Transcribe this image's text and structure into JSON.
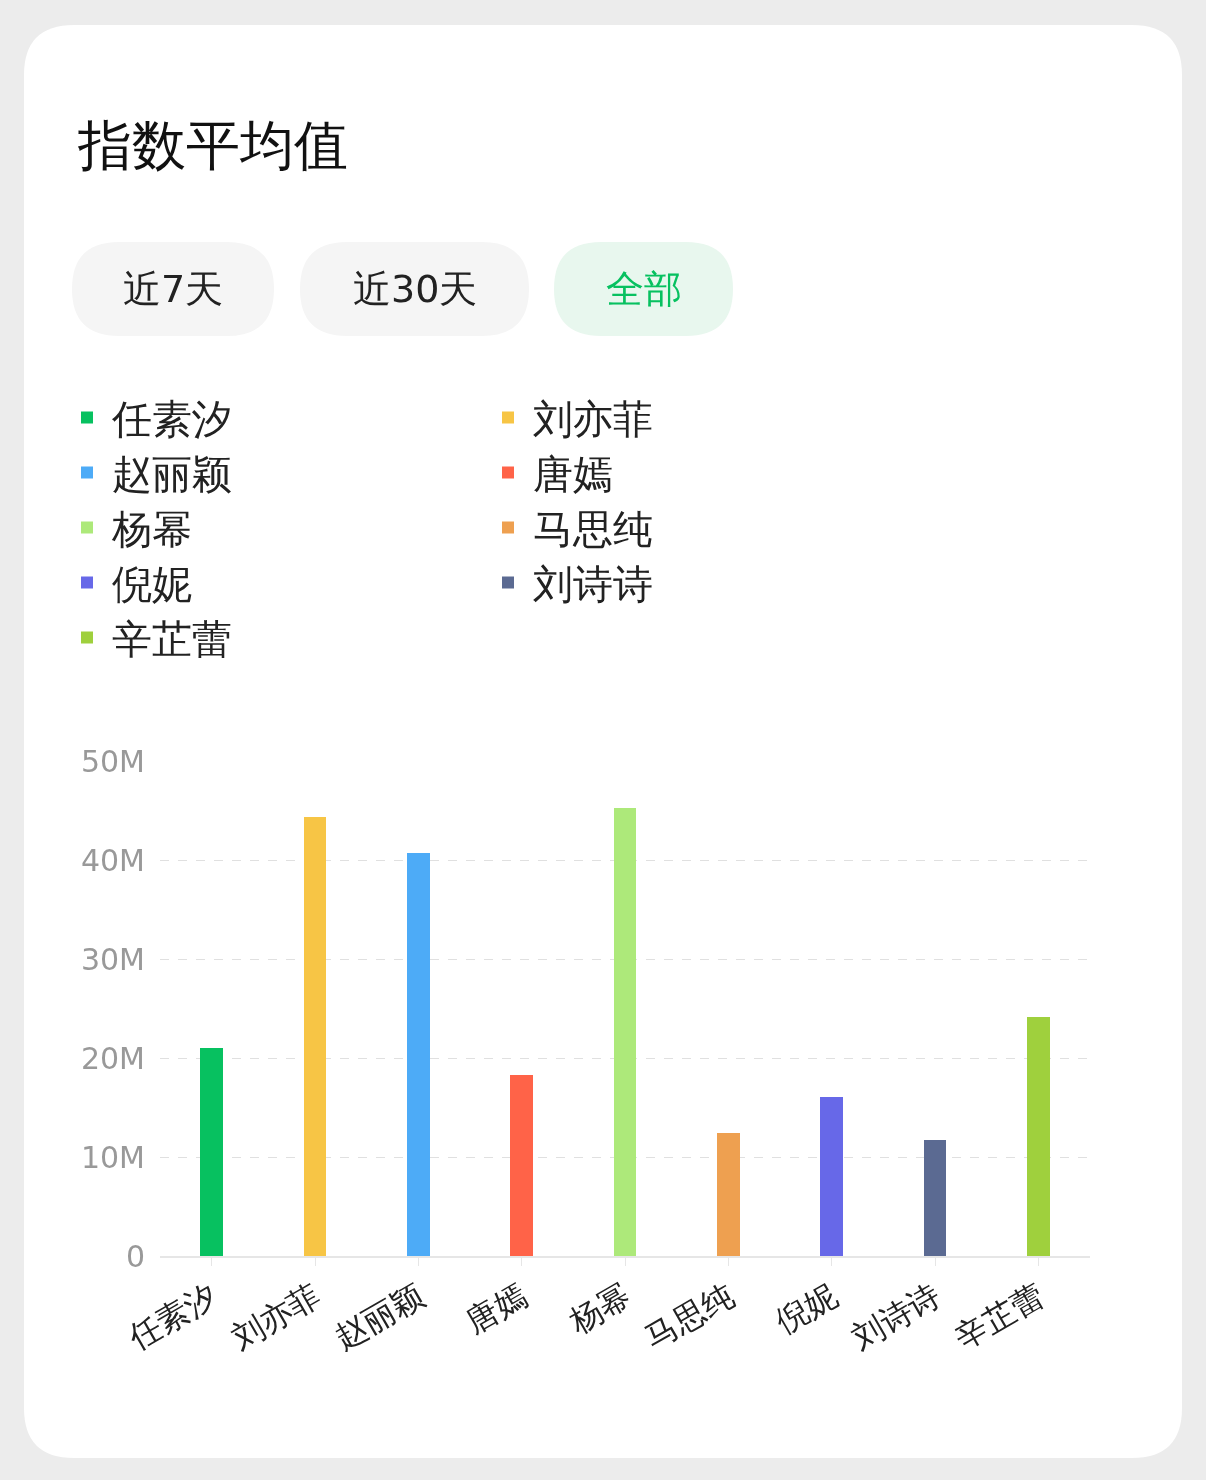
{
  "chart_data": {
    "type": "bar",
    "title": "指数平均值",
    "annotations": [
      "近7天",
      "近30天",
      "全部"
    ],
    "categories": [
      "任素汐",
      "刘亦菲",
      "赵丽颖",
      "唐嫣",
      "杨幂",
      "马思纯",
      "倪妮",
      "刘诗诗",
      "辛芷蕾"
    ],
    "series": [
      {
        "name": "任素汐",
        "color": "#07c160",
        "values": [
          21,
          null,
          null,
          null,
          null,
          null,
          null,
          null,
          null
        ]
      },
      {
        "name": "刘亦菲",
        "color": "#f7c545",
        "values": [
          null,
          44.3,
          null,
          null,
          null,
          null,
          null,
          null,
          null
        ]
      },
      {
        "name": "赵丽颖",
        "color": "#4dabf7",
        "values": [
          null,
          null,
          40.7,
          null,
          null,
          null,
          null,
          null,
          null
        ]
      },
      {
        "name": "唐嫣",
        "color": "#ff6348",
        "values": [
          null,
          null,
          null,
          18.3,
          null,
          null,
          null,
          null,
          null
        ]
      },
      {
        "name": "杨幂",
        "color": "#ade97a",
        "values": [
          null,
          null,
          null,
          null,
          45.3,
          null,
          null,
          null,
          null
        ]
      },
      {
        "name": "马思纯",
        "color": "#eea050",
        "values": [
          null,
          null,
          null,
          null,
          null,
          12.4,
          null,
          null,
          null
        ]
      },
      {
        "name": "倪妮",
        "color": "#6768e8",
        "values": [
          null,
          null,
          null,
          null,
          null,
          null,
          16.1,
          null,
          null
        ]
      },
      {
        "name": "刘诗诗",
        "color": "#5b6a92",
        "values": [
          null,
          null,
          null,
          null,
          null,
          null,
          null,
          11.7,
          null
        ]
      },
      {
        "name": "辛芷蕾",
        "color": "#9fd03d",
        "values": [
          null,
          null,
          null,
          null,
          null,
          null,
          null,
          null,
          24.1
        ]
      }
    ],
    "ylim": [
      0,
      50
    ],
    "yticks": [
      {
        "value": 0,
        "label": "0"
      },
      {
        "value": 10,
        "label": "10M"
      },
      {
        "value": 20,
        "label": "20M"
      },
      {
        "value": 30,
        "label": "30M"
      },
      {
        "value": 40,
        "label": "40M"
      },
      {
        "value": 50,
        "label": "50M"
      }
    ],
    "grid": "y",
    "legend": "top"
  }
}
